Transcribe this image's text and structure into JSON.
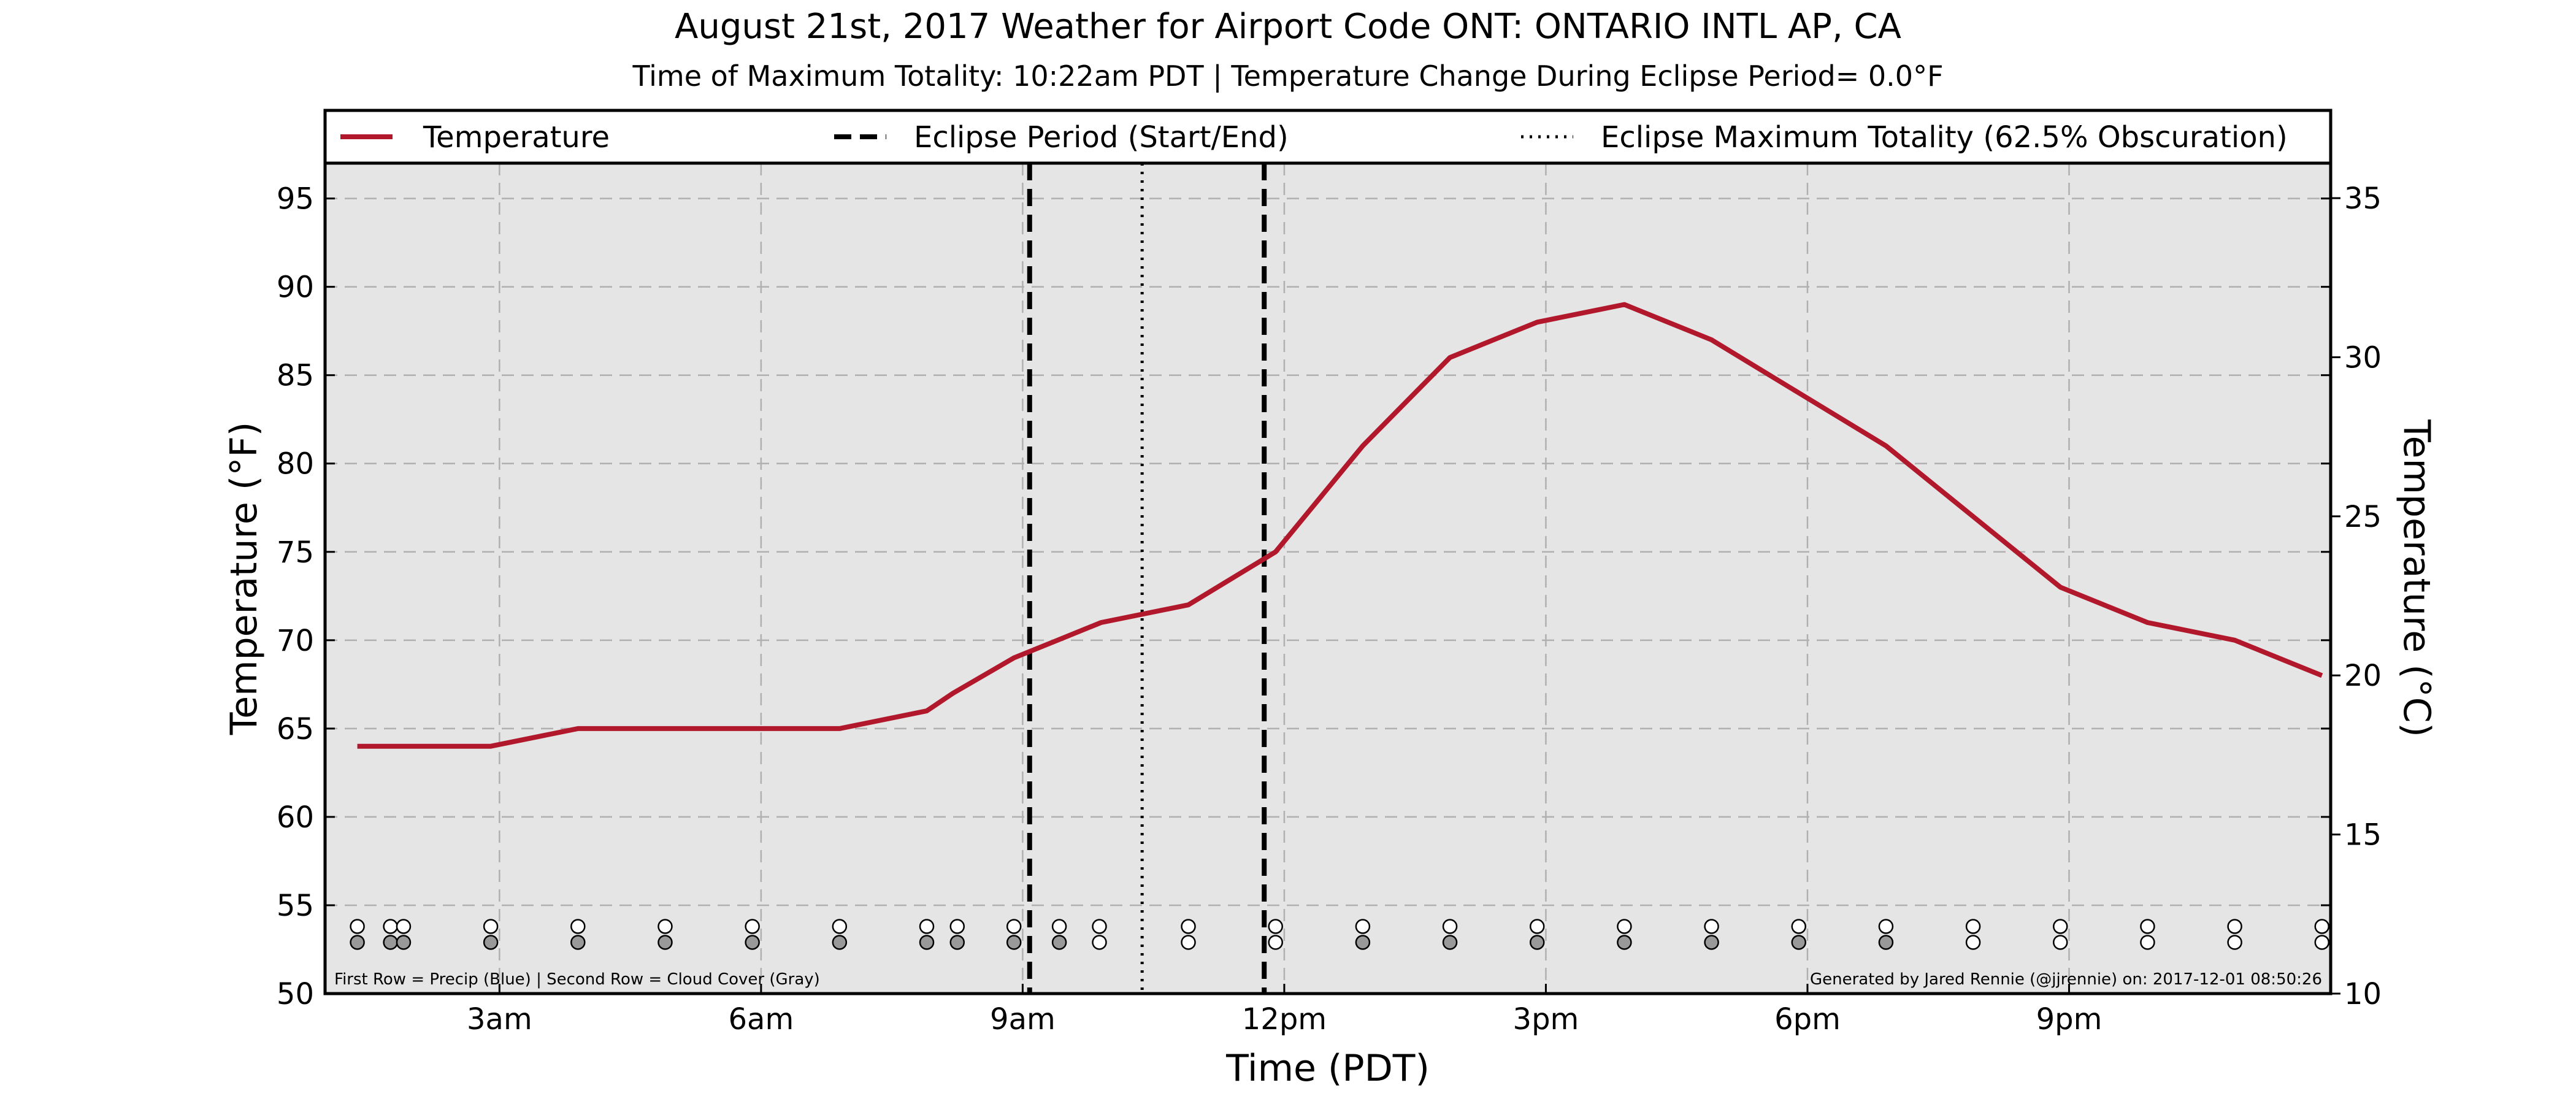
{
  "chart_data": {
    "type": "line",
    "title": "August 21st, 2017 Weather for Airport Code ONT: ONTARIO INTL AP, CA",
    "subtitle": "Time of Maximum Totality: 10:22am PDT | Temperature Change During Eclipse Period= 0.0°F",
    "xlabel": "Time (PDT)",
    "ylabel_left": "Temperature (°F)",
    "ylabel_right": "Temperature (°C)",
    "x_unit": "hours",
    "xlim": [
      1.0,
      24.0
    ],
    "ylim_f": [
      50,
      97
    ],
    "ylim_c": [
      10,
      36.1
    ],
    "x_ticks": [
      {
        "x": 3,
        "label": "3am"
      },
      {
        "x": 6,
        "label": "6am"
      },
      {
        "x": 9,
        "label": "9am"
      },
      {
        "x": 12,
        "label": "12pm"
      },
      {
        "x": 15,
        "label": "3pm"
      },
      {
        "x": 18,
        "label": "6pm"
      },
      {
        "x": 21,
        "label": "9pm"
      }
    ],
    "y_ticks_f": [
      50,
      55,
      60,
      65,
      70,
      75,
      80,
      85,
      90,
      95
    ],
    "y_ticks_c": [
      10,
      15,
      20,
      25,
      30,
      35
    ],
    "grid": true,
    "legend_position": "top",
    "legend": [
      {
        "label": "Temperature",
        "style": "solid",
        "color": "#b2182b"
      },
      {
        "label": "Eclipse Period (Start/End)",
        "style": "dashed",
        "color": "#000000"
      },
      {
        "label": "Eclipse Maximum Totality (62.5% Obscuration)",
        "style": "dotted",
        "color": "#000000"
      }
    ],
    "series": [
      {
        "name": "Temperature",
        "color": "#b2182b",
        "x": [
          1.37,
          2.9,
          3.9,
          6.9,
          7.9,
          8.2,
          8.9,
          9.4,
          9.9,
          10.9,
          11.9,
          12.9,
          13.9,
          14.9,
          15.9,
          16.9,
          17.9,
          18.9,
          19.9,
          20.9,
          21.9,
          22.9,
          23.9
        ],
        "y": [
          64,
          64,
          65,
          65,
          66,
          67,
          69,
          70,
          71,
          72,
          75,
          81,
          86,
          88,
          89,
          87,
          84,
          81,
          77,
          73,
          71,
          70,
          68
        ]
      }
    ],
    "eclipse_start": 9.08,
    "eclipse_end": 11.77,
    "eclipse_max": 10.37,
    "observation_rows": {
      "precip_y": 53.8,
      "cloud_y": 52.9,
      "precip_fill": "#ffffff",
      "cloud_clear_fill": "#ffffff",
      "cloud_cover_fill": "#999999",
      "observations": [
        {
          "x": 1.37,
          "cloud": "cover"
        },
        {
          "x": 1.75,
          "cloud": "cover"
        },
        {
          "x": 1.9,
          "cloud": "cover"
        },
        {
          "x": 2.9,
          "cloud": "cover"
        },
        {
          "x": 3.9,
          "cloud": "cover"
        },
        {
          "x": 4.9,
          "cloud": "cover"
        },
        {
          "x": 5.9,
          "cloud": "cover"
        },
        {
          "x": 6.9,
          "cloud": "cover"
        },
        {
          "x": 7.9,
          "cloud": "cover"
        },
        {
          "x": 8.25,
          "cloud": "cover"
        },
        {
          "x": 8.9,
          "cloud": "cover"
        },
        {
          "x": 9.42,
          "cloud": "cover"
        },
        {
          "x": 9.88,
          "cloud": "clear"
        },
        {
          "x": 10.9,
          "cloud": "clear"
        },
        {
          "x": 11.9,
          "cloud": "clear"
        },
        {
          "x": 12.9,
          "cloud": "cover"
        },
        {
          "x": 13.9,
          "cloud": "cover"
        },
        {
          "x": 14.9,
          "cloud": "cover"
        },
        {
          "x": 15.9,
          "cloud": "cover"
        },
        {
          "x": 16.9,
          "cloud": "cover"
        },
        {
          "x": 17.9,
          "cloud": "cover"
        },
        {
          "x": 18.9,
          "cloud": "cover"
        },
        {
          "x": 19.9,
          "cloud": "clear"
        },
        {
          "x": 20.9,
          "cloud": "clear"
        },
        {
          "x": 21.9,
          "cloud": "clear"
        },
        {
          "x": 22.9,
          "cloud": "clear"
        },
        {
          "x": 23.9,
          "cloud": "clear"
        }
      ]
    },
    "footnote_left": "First Row = Precip (Blue) | Second Row = Cloud Cover (Gray)",
    "footnote_right": "Generated by Jared Rennie (@jjrennie) on: 2017-12-01 08:50:26",
    "colors": {
      "plot_background": "#e5e5e5",
      "grid": "#b0b0b0",
      "temperature": "#b2182b"
    }
  }
}
